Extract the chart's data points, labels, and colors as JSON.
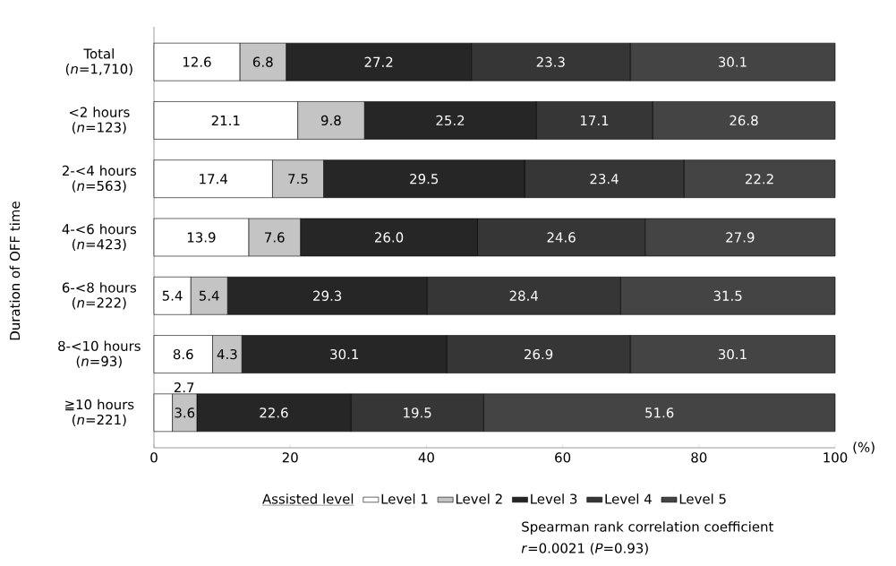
{
  "chart_data": {
    "type": "bar",
    "orientation": "horizontal",
    "stacked": true,
    "categories": [
      "Total (*n*=1,710)",
      "<2 hours (*n*=123)",
      "2-<4 hours (*n*=563)",
      "4-<6 hours (*n*=423)",
      "6-<8 hours (*n*=222)",
      "8-<10 hours (*n*=93)",
      "≧10 hours (*n*=221)"
    ],
    "series": [
      {
        "name": "Level 1",
        "color": "#ffffff",
        "values": [
          12.6,
          21.1,
          17.4,
          13.9,
          5.4,
          8.6,
          2.7
        ],
        "value_labels": [
          "12.6",
          "21.1",
          "17.4",
          "13.9",
          "5.4",
          "8.6",
          "2.7"
        ]
      },
      {
        "name": "Level 2",
        "color": "#c4c4c4",
        "values": [
          6.8,
          9.8,
          7.5,
          7.6,
          5.4,
          4.3,
          3.6
        ],
        "value_labels": [
          "6.8",
          "9.8",
          "7.5",
          "7.6",
          "5.4",
          "4.3",
          "3.6"
        ]
      },
      {
        "name": "Level 3",
        "color": "#262626",
        "values": [
          27.2,
          25.2,
          29.5,
          26.0,
          29.3,
          30.1,
          22.6
        ],
        "value_labels": [
          "27.2",
          "25.2",
          "29.5",
          "26.0",
          "29.3",
          "30.1",
          "22.6"
        ]
      },
      {
        "name": "Level 4",
        "color": "#363636",
        "values": [
          23.3,
          17.1,
          23.4,
          24.6,
          28.4,
          26.9,
          19.5
        ],
        "value_labels": [
          "23.3",
          "17.1",
          "23.4",
          "24.6",
          "28.4",
          "26.9",
          "19.5"
        ]
      },
      {
        "name": "Level 5",
        "color": "#444444",
        "values": [
          30.1,
          26.8,
          22.2,
          27.9,
          31.5,
          30.1,
          51.6
        ],
        "value_labels": [
          "30.1",
          "26.8",
          "22.2",
          "27.9",
          "31.5",
          "30.1",
          "51.6"
        ]
      }
    ],
    "xlim": [
      0,
      100
    ],
    "xticks": [
      0,
      20,
      40,
      60,
      80,
      100
    ],
    "xlabel": "(%)",
    "ylabel": "Duration of OFF time",
    "legend": "bottom",
    "legend_title": "Assisted level",
    "annotations": [
      "Spearman rank correlation coefficient",
      "*r*=0.0021 (*P*=0.93)"
    ]
  }
}
